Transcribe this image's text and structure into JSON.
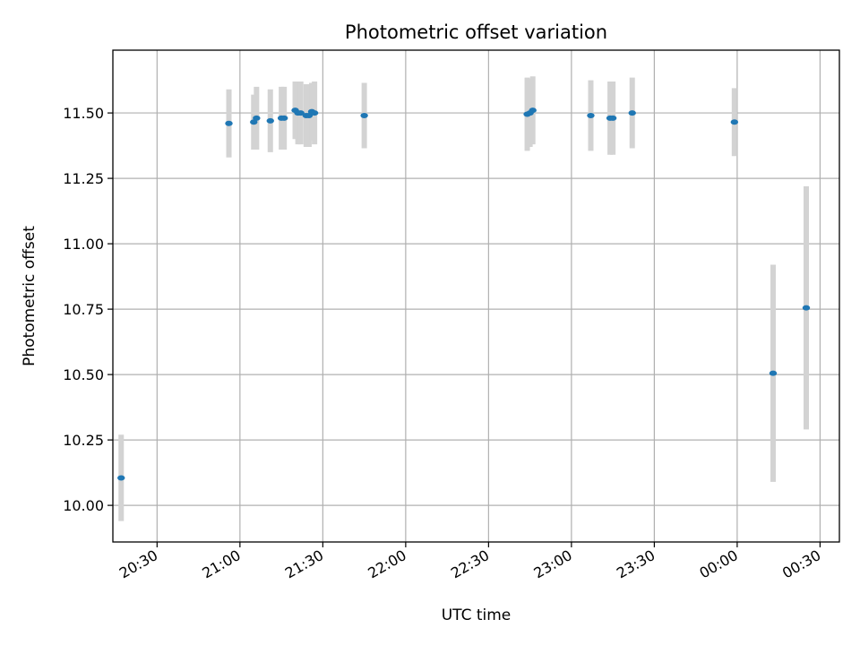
{
  "chart_data": {
    "type": "scatter",
    "title": "Photometric offset variation",
    "xlabel": "UTC time",
    "ylabel": "Photometric offset",
    "x_is_time_of_day": true,
    "x_ticks": [
      "20:30",
      "21:00",
      "21:30",
      "22:00",
      "22:30",
      "23:00",
      "23:30",
      "00:00",
      "00:30"
    ],
    "xlim": [
      "20:14",
      "00:37"
    ],
    "y_ticks": [
      "10.00",
      "10.25",
      "10.50",
      "10.75",
      "11.00",
      "11.25",
      "11.50"
    ],
    "ylim": [
      9.86,
      11.74
    ],
    "grid": true,
    "marker_color": "#1f77b4",
    "errorbar_color": "#d3d3d3",
    "series": [
      {
        "x": [
          "20:17",
          "20:56",
          "21:05",
          "21:06",
          "21:11",
          "21:15",
          "21:16",
          "21:20",
          "21:21",
          "21:22",
          "21:24",
          "21:25",
          "21:26",
          "21:27",
          "21:45",
          "22:44",
          "22:45",
          "22:46",
          "23:07",
          "23:14",
          "23:15",
          "23:22",
          "23:59",
          "00:13",
          "00:25"
        ],
        "y": [
          10.105,
          11.46,
          11.465,
          11.48,
          11.47,
          11.48,
          11.48,
          11.51,
          11.5,
          11.5,
          11.49,
          11.49,
          11.505,
          11.5,
          11.49,
          11.495,
          11.5,
          11.51,
          11.49,
          11.48,
          11.48,
          11.5,
          11.465,
          10.505,
          10.755
        ],
        "yerr": [
          0.165,
          0.13,
          0.105,
          0.12,
          0.12,
          0.12,
          0.12,
          0.11,
          0.12,
          0.12,
          0.12,
          0.12,
          0.11,
          0.12,
          0.125,
          0.14,
          0.13,
          0.13,
          0.135,
          0.14,
          0.14,
          0.135,
          0.13,
          0.415,
          0.465
        ]
      }
    ]
  }
}
